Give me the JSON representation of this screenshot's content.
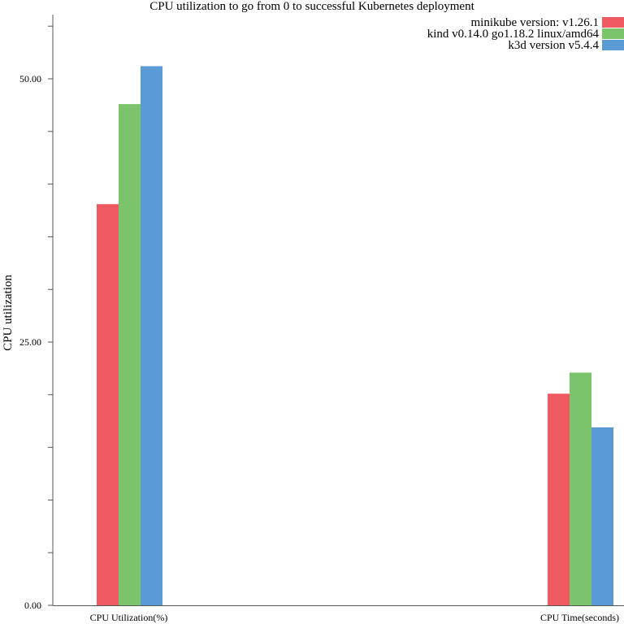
{
  "chart_data": {
    "type": "bar",
    "title": "CPU utilization to go from 0 to successful Kubernetes deployment",
    "ylabel": "CPU utilization",
    "xlabel": "",
    "categories": [
      "CPU Utilization(%)",
      "CPU Time(seconds)"
    ],
    "series": [
      {
        "name": "minikube version: v1.26.1",
        "color": "#ef5a62",
        "values": [
          38.1,
          20.1
        ]
      },
      {
        "name": "kind v0.14.0 go1.18.2 linux/amd64",
        "color": "#7bc46b",
        "values": [
          47.6,
          22.1
        ]
      },
      {
        "name": "k3d version v5.4.4",
        "color": "#5b9bd5",
        "values": [
          51.2,
          16.9
        ]
      }
    ],
    "ylim": [
      0,
      56
    ],
    "yticks": [
      "0.00",
      "25.00",
      "50.00"
    ],
    "grid": false,
    "legend_position": "top-right"
  }
}
